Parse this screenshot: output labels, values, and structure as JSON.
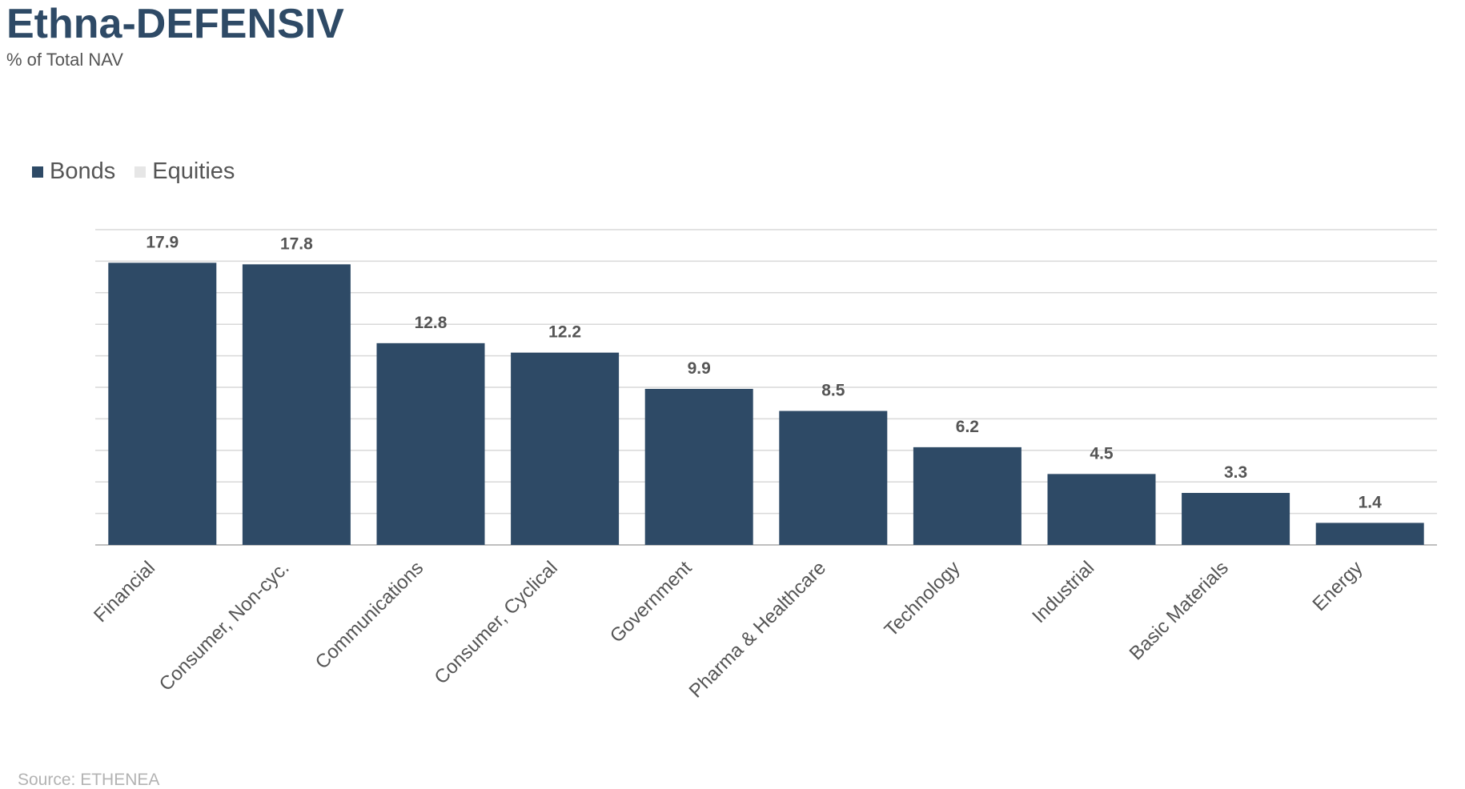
{
  "header": {
    "title": "Ethna-DEFENSIV",
    "subtitle": "% of Total NAV"
  },
  "legend": {
    "items": [
      {
        "label": "Bonds",
        "color": "#2e4a66"
      },
      {
        "label": "Equities",
        "color": "#e6e6e6"
      }
    ]
  },
  "footer": {
    "source": "Source: ETHENEA"
  },
  "chart_data": {
    "type": "bar",
    "title": "Ethna-DEFENSIV",
    "subtitle": "% of Total NAV",
    "categories": [
      "Financial",
      "Consumer, Non-cyc.",
      "Communications",
      "Consumer, Cyclical",
      "Government",
      "Pharma & Healthcare",
      "Technology",
      "Industrial",
      "Basic Materials",
      "Energy"
    ],
    "series": [
      {
        "name": "Bonds",
        "color": "#2e4a66",
        "values": [
          17.9,
          17.8,
          12.8,
          12.2,
          9.9,
          8.5,
          6.2,
          4.5,
          3.3,
          1.4
        ]
      },
      {
        "name": "Equities",
        "color": "#e6e6e6",
        "values": [
          0,
          0,
          0,
          0,
          0,
          0,
          0,
          0,
          0,
          0
        ]
      }
    ],
    "data_labels": [
      "17.9",
      "17.8",
      "12.8",
      "12.2",
      "9.9",
      "8.5",
      "6.2",
      "4.5",
      "3.3",
      "1.4"
    ],
    "ylim": [
      0,
      20
    ],
    "gridline_step": 2,
    "grid": true,
    "y_tick_labels_shown": false,
    "legend_position": "top-left",
    "source": "Source: ETHENEA"
  }
}
